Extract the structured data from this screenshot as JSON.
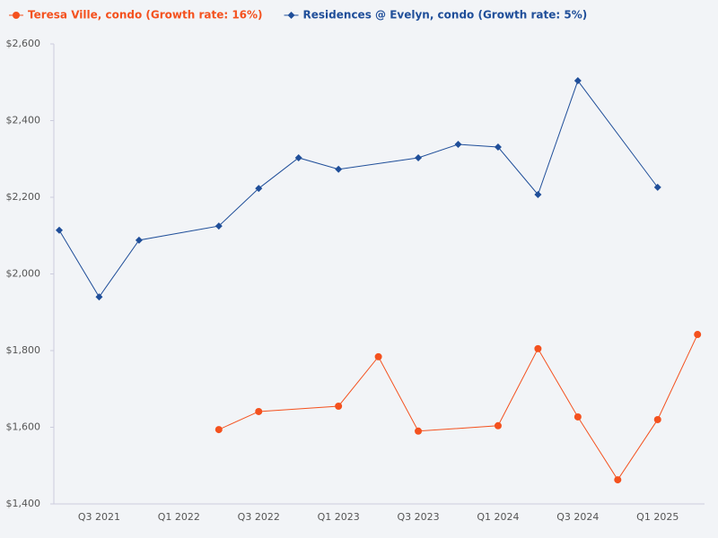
{
  "chart_data": {
    "type": "line",
    "categories": [
      null,
      "Q3 2021",
      null,
      "Q1 2022",
      null,
      "Q3 2022",
      null,
      "Q1 2023",
      null,
      "Q3 2023",
      null,
      "Q1 2024",
      null,
      "Q3 2024",
      null,
      "Q1 2025",
      null
    ],
    "series": [
      {
        "name": "Teresa Ville, condo (Growth rate: 16%)",
        "color": "#f4511e",
        "marker": "circle",
        "values": [
          null,
          null,
          null,
          null,
          1594,
          1641,
          null,
          1655,
          1784,
          1590,
          null,
          1604,
          1805,
          1627,
          1463,
          1620,
          1842
        ]
      },
      {
        "name": "Residences @ Evelyn, condo (Growth rate: 5%)",
        "color": "#1f4e99",
        "marker": "diamond",
        "values": [
          2114,
          1940,
          2088,
          null,
          2125,
          2223,
          2303,
          2273,
          null,
          2303,
          2338,
          2331,
          2207,
          2504,
          null,
          2226,
          null
        ]
      }
    ],
    "ylim": [
      1400,
      2600
    ],
    "yticks": [
      {
        "value": 1400,
        "label": "$1,400"
      },
      {
        "value": 1600,
        "label": "$1,600"
      },
      {
        "value": 1800,
        "label": "$1,800"
      },
      {
        "value": 2000,
        "label": "$2,000"
      },
      {
        "value": 2200,
        "label": "$2,200"
      },
      {
        "value": 2400,
        "label": "$2,400"
      },
      {
        "value": 2600,
        "label": "$2,600"
      }
    ],
    "connect_gaps": true,
    "legend": "top"
  }
}
